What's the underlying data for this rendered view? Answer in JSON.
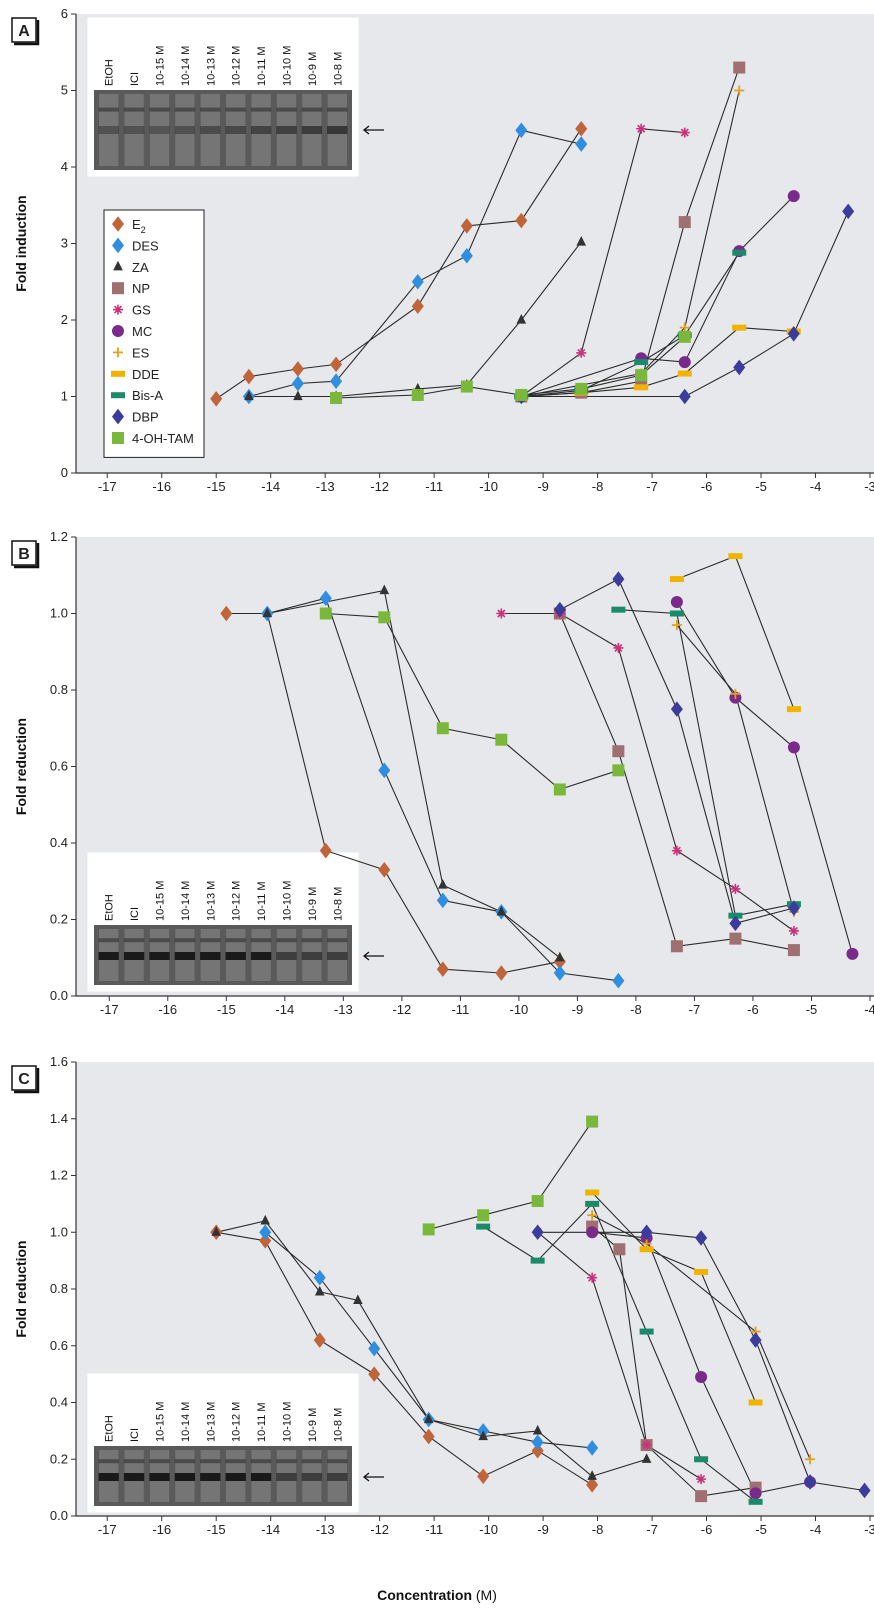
{
  "figure": {
    "xlabel_main": "Concentration",
    "xlabel_unit": "(M)",
    "background_color": "#e7e8ec",
    "line_color": "#2b2b2b"
  },
  "gel_lanes": [
    "EtOH",
    "ICI",
    "10-15 M",
    "10-14 M",
    "10-13 M",
    "10-12 M",
    "10-11 M",
    "10-10 M",
    "10-9 M",
    "10-8 M"
  ],
  "legend": [
    {
      "name": "E2",
      "label": "E",
      "sub": "2",
      "marker": "diamond",
      "color": "#c0643a"
    },
    {
      "name": "DES",
      "label": "DES",
      "sub": "",
      "marker": "diamond",
      "color": "#2f8ee0"
    },
    {
      "name": "ZA",
      "label": "ZA",
      "sub": "",
      "marker": "triangle",
      "color": "#333333"
    },
    {
      "name": "NP",
      "label": "NP",
      "sub": "",
      "marker": "square",
      "color": "#a07070"
    },
    {
      "name": "GS",
      "label": "GS",
      "sub": "",
      "marker": "star",
      "color": "#c8327a"
    },
    {
      "name": "MC",
      "label": "MC",
      "sub": "",
      "marker": "circle",
      "color": "#7a2a8a"
    },
    {
      "name": "ES",
      "label": "ES",
      "sub": "",
      "marker": "plus",
      "color": "#e0a020"
    },
    {
      "name": "DDE",
      "label": "DDE",
      "sub": "",
      "marker": "hbar",
      "color": "#f0b400"
    },
    {
      "name": "Bis-A",
      "label": "Bis-A",
      "sub": "",
      "marker": "hbar",
      "color": "#1a8a6a"
    },
    {
      "name": "DBP",
      "label": "DBP",
      "sub": "",
      "marker": "diamond",
      "color": "#3c3c9c"
    },
    {
      "name": "4-OH-TAM",
      "label": "4-OH-TAM",
      "sub": "",
      "marker": "square",
      "color": "#7ab83c"
    }
  ],
  "chart_data": [
    {
      "panel": "A",
      "type": "line",
      "ylabel": "Fold induction",
      "xlim": [
        -17.5,
        -3
      ],
      "ylim": [
        0,
        6
      ],
      "x_ticks": [
        -17,
        -16,
        -15,
        -14,
        -13,
        -12,
        -11,
        -10,
        -9,
        -8,
        -7,
        -6,
        -5,
        -4,
        -3
      ],
      "y_ticks": [
        0,
        1,
        2,
        3,
        4,
        5,
        6
      ],
      "y_tick_labels": [
        "0",
        "1",
        "2",
        "3",
        "4",
        "5",
        "6"
      ],
      "legend_position": "left",
      "inset_position": "top-left",
      "series": [
        {
          "name": "E2",
          "points": [
            [
              -15,
              0.97
            ],
            [
              -14.4,
              1.26
            ],
            [
              -13.5,
              1.36
            ],
            [
              -12.8,
              1.42
            ],
            [
              -11.3,
              2.18
            ],
            [
              -10.4,
              3.23
            ],
            [
              -9.4,
              3.3
            ],
            [
              -8.3,
              4.5
            ]
          ]
        },
        {
          "name": "DES",
          "points": [
            [
              -14.4,
              1.0
            ],
            [
              -13.5,
              1.17
            ],
            [
              -12.8,
              1.2
            ],
            [
              -11.3,
              2.5
            ],
            [
              -10.4,
              2.84
            ],
            [
              -9.4,
              4.48
            ],
            [
              -8.3,
              4.3
            ]
          ]
        },
        {
          "name": "ZA",
          "points": [
            [
              -14.4,
              1.0
            ],
            [
              -13.5,
              1.0
            ],
            [
              -12.8,
              1.0
            ],
            [
              -11.3,
              1.1
            ],
            [
              -10.4,
              1.15
            ],
            [
              -9.4,
              2.0
            ],
            [
              -8.3,
              3.02
            ]
          ]
        },
        {
          "name": "NP",
          "points": [
            [
              -9.4,
              1.0
            ],
            [
              -8.3,
              1.05
            ],
            [
              -7.2,
              1.2
            ],
            [
              -6.4,
              3.28
            ],
            [
              -5.4,
              5.3
            ]
          ]
        },
        {
          "name": "GS",
          "points": [
            [
              -9.4,
              1.0
            ],
            [
              -8.3,
              1.57
            ],
            [
              -7.2,
              4.5
            ],
            [
              -6.4,
              4.45
            ]
          ]
        },
        {
          "name": "MC",
          "points": [
            [
              -9.4,
              1.0
            ],
            [
              -7.2,
              1.5
            ],
            [
              -6.4,
              1.45
            ],
            [
              -5.4,
              2.9
            ],
            [
              -4.4,
              3.62
            ]
          ]
        },
        {
          "name": "ES",
          "points": [
            [
              -9.4,
              1.0
            ],
            [
              -7.2,
              1.3
            ],
            [
              -6.4,
              1.9
            ],
            [
              -5.4,
              5.0
            ]
          ]
        },
        {
          "name": "DDE",
          "points": [
            [
              -9.4,
              1.0
            ],
            [
              -8.3,
              1.05
            ],
            [
              -7.2,
              1.12
            ],
            [
              -6.4,
              1.3
            ],
            [
              -5.4,
              1.9
            ],
            [
              -4.4,
              1.85
            ]
          ]
        },
        {
          "name": "Bis-A",
          "points": [
            [
              -9.4,
              1.0
            ],
            [
              -8.3,
              1.08
            ],
            [
              -7.2,
              1.45
            ],
            [
              -6.4,
              1.8
            ],
            [
              -5.4,
              2.88
            ]
          ]
        },
        {
          "name": "DBP",
          "points": [
            [
              -9.4,
              1.0
            ],
            [
              -6.4,
              1.0
            ],
            [
              -5.4,
              1.38
            ],
            [
              -4.4,
              1.82
            ],
            [
              -3.4,
              3.42
            ]
          ]
        },
        {
          "name": "4-OH-TAM",
          "points": [
            [
              -12.8,
              0.98
            ],
            [
              -11.3,
              1.02
            ],
            [
              -10.4,
              1.13
            ],
            [
              -9.4,
              1.02
            ],
            [
              -8.3,
              1.1
            ],
            [
              -7.2,
              1.28
            ],
            [
              -6.4,
              1.78
            ]
          ]
        }
      ]
    },
    {
      "panel": "B",
      "type": "line",
      "ylabel": "Fold reduction",
      "xlim": [
        -17.5,
        -4
      ],
      "ylim": [
        0,
        1.2
      ],
      "x_ticks": [
        -17,
        -16,
        -15,
        -14,
        -13,
        -12,
        -11,
        -10,
        -9,
        -8,
        -7,
        -6,
        -5,
        -4
      ],
      "y_ticks": [
        0,
        0.2,
        0.4,
        0.6,
        0.8,
        1.0,
        1.2
      ],
      "y_tick_labels": [
        "0.0",
        "0.2",
        "0.4",
        "0.6",
        "0.8",
        "1.0",
        "1.2"
      ],
      "inset_position": "bottom-left",
      "series": [
        {
          "name": "E2",
          "points": [
            [
              -15,
              1.0
            ],
            [
              -14.3,
              1.0
            ],
            [
              -13.3,
              0.38
            ],
            [
              -12.3,
              0.33
            ],
            [
              -11.3,
              0.07
            ],
            [
              -10.3,
              0.06
            ],
            [
              -9.3,
              0.09
            ]
          ]
        },
        {
          "name": "DES",
          "points": [
            [
              -14.3,
              1.0
            ],
            [
              -13.3,
              1.04
            ],
            [
              -12.3,
              0.59
            ],
            [
              -11.3,
              0.25
            ],
            [
              -10.3,
              0.22
            ],
            [
              -9.3,
              0.06
            ],
            [
              -8.3,
              0.04
            ]
          ]
        },
        {
          "name": "ZA",
          "points": [
            [
              -14.3,
              1.0
            ],
            [
              -12.3,
              1.06
            ],
            [
              -11.3,
              0.29
            ],
            [
              -10.3,
              0.22
            ],
            [
              -9.3,
              0.1
            ]
          ]
        },
        {
          "name": "NP",
          "points": [
            [
              -9.3,
              1.0
            ],
            [
              -8.3,
              0.64
            ],
            [
              -7.3,
              0.13
            ],
            [
              -6.3,
              0.15
            ],
            [
              -5.3,
              0.12
            ]
          ]
        },
        {
          "name": "GS",
          "points": [
            [
              -10.3,
              1.0
            ],
            [
              -9.3,
              1.0
            ],
            [
              -8.3,
              0.91
            ],
            [
              -7.3,
              0.38
            ],
            [
              -6.3,
              0.28
            ],
            [
              -5.3,
              0.17
            ]
          ]
        },
        {
          "name": "MC",
          "points": [
            [
              -7.3,
              1.03
            ],
            [
              -6.3,
              0.78
            ],
            [
              -5.3,
              0.65
            ],
            [
              -4.3,
              0.11
            ]
          ]
        },
        {
          "name": "ES",
          "points": [
            [
              -7.3,
              0.97
            ],
            [
              -6.3,
              0.79
            ],
            [
              -5.3,
              0.22
            ]
          ]
        },
        {
          "name": "DDE",
          "points": [
            [
              -7.3,
              1.09
            ],
            [
              -6.3,
              1.15
            ],
            [
              -5.3,
              0.75
            ]
          ]
        },
        {
          "name": "Bis-A",
          "points": [
            [
              -8.3,
              1.01
            ],
            [
              -7.3,
              1.0
            ],
            [
              -6.3,
              0.21
            ],
            [
              -5.3,
              0.24
            ]
          ]
        },
        {
          "name": "DBP",
          "points": [
            [
              -9.3,
              1.01
            ],
            [
              -8.3,
              1.09
            ],
            [
              -7.3,
              0.75
            ],
            [
              -6.3,
              0.19
            ],
            [
              -5.3,
              0.23
            ]
          ]
        },
        {
          "name": "4-OH-TAM",
          "points": [
            [
              -13.3,
              1.0
            ],
            [
              -12.3,
              0.99
            ],
            [
              -11.3,
              0.7
            ],
            [
              -10.3,
              0.67
            ],
            [
              -9.3,
              0.54
            ],
            [
              -8.3,
              0.59
            ]
          ]
        }
      ]
    },
    {
      "panel": "C",
      "type": "line",
      "ylabel": "Fold reduction",
      "xlabel": "Concentration (M)",
      "xlim": [
        -17.5,
        -3
      ],
      "ylim": [
        0,
        1.6
      ],
      "x_ticks": [
        -17,
        -16,
        -15,
        -14,
        -13,
        -12,
        -11,
        -10,
        -9,
        -8,
        -7,
        -6,
        -5,
        -4,
        -3
      ],
      "y_ticks": [
        0,
        0.2,
        0.4,
        0.6,
        0.8,
        1.0,
        1.2,
        1.4,
        1.6
      ],
      "y_tick_labels": [
        "0.0",
        "0.2",
        "0.4",
        "0.6",
        "0.8",
        "1.0",
        "1.2",
        "1.4",
        "1.6"
      ],
      "inset_position": "bottom-left",
      "series": [
        {
          "name": "E2",
          "points": [
            [
              -15,
              1.0
            ],
            [
              -14.1,
              0.97
            ],
            [
              -13.1,
              0.62
            ],
            [
              -12.1,
              0.5
            ],
            [
              -11.1,
              0.28
            ],
            [
              -10.1,
              0.14
            ],
            [
              -9.1,
              0.23
            ],
            [
              -8.1,
              0.11
            ]
          ]
        },
        {
          "name": "DES",
          "points": [
            [
              -14.1,
              1.0
            ],
            [
              -13.1,
              0.84
            ],
            [
              -12.1,
              0.59
            ],
            [
              -11.1,
              0.34
            ],
            [
              -10.1,
              0.3
            ],
            [
              -9.1,
              0.26
            ],
            [
              -8.1,
              0.24
            ]
          ]
        },
        {
          "name": "ZA",
          "points": [
            [
              -15,
              1.0
            ],
            [
              -14.1,
              1.04
            ],
            [
              -13.1,
              0.79
            ],
            [
              -12.4,
              0.76
            ],
            [
              -11.1,
              0.34
            ],
            [
              -10.1,
              0.28
            ],
            [
              -9.1,
              0.3
            ],
            [
              -8.1,
              0.14
            ],
            [
              -7.1,
              0.2
            ]
          ]
        },
        {
          "name": "NP",
          "points": [
            [
              -8.1,
              1.02
            ],
            [
              -7.6,
              0.94
            ],
            [
              -7.1,
              0.25
            ],
            [
              -6.1,
              0.07
            ],
            [
              -5.1,
              0.1
            ]
          ]
        },
        {
          "name": "GS",
          "points": [
            [
              -9.1,
              1.0
            ],
            [
              -8.1,
              0.84
            ],
            [
              -7.1,
              0.25
            ],
            [
              -6.1,
              0.13
            ]
          ]
        },
        {
          "name": "MC",
          "points": [
            [
              -8.1,
              1.0
            ],
            [
              -7.1,
              0.98
            ],
            [
              -6.1,
              0.49
            ],
            [
              -5.1,
              0.08
            ],
            [
              -4.1,
              0.12
            ]
          ]
        },
        {
          "name": "ES",
          "points": [
            [
              -8.1,
              1.06
            ],
            [
              -7.1,
              0.96
            ],
            [
              -5.1,
              0.65
            ],
            [
              -4.1,
              0.2
            ]
          ]
        },
        {
          "name": "DDE",
          "points": [
            [
              -8.1,
              1.14
            ],
            [
              -7.1,
              0.94
            ],
            [
              -6.1,
              0.86
            ],
            [
              -5.1,
              0.4
            ]
          ]
        },
        {
          "name": "Bis-A",
          "points": [
            [
              -10.1,
              1.02
            ],
            [
              -9.1,
              0.9
            ],
            [
              -8.1,
              1.1
            ],
            [
              -7.1,
              0.65
            ],
            [
              -6.1,
              0.2
            ],
            [
              -5.1,
              0.05
            ]
          ]
        },
        {
          "name": "DBP",
          "points": [
            [
              -9.1,
              1.0
            ],
            [
              -7.1,
              1.0
            ],
            [
              -6.1,
              0.98
            ],
            [
              -5.1,
              0.62
            ],
            [
              -4.1,
              0.12
            ],
            [
              -3.1,
              0.09
            ]
          ]
        },
        {
          "name": "4-OH-TAM",
          "points": [
            [
              -11.1,
              1.01
            ],
            [
              -10.1,
              1.06
            ],
            [
              -9.1,
              1.11
            ],
            [
              -8.1,
              1.39
            ]
          ]
        }
      ]
    }
  ]
}
